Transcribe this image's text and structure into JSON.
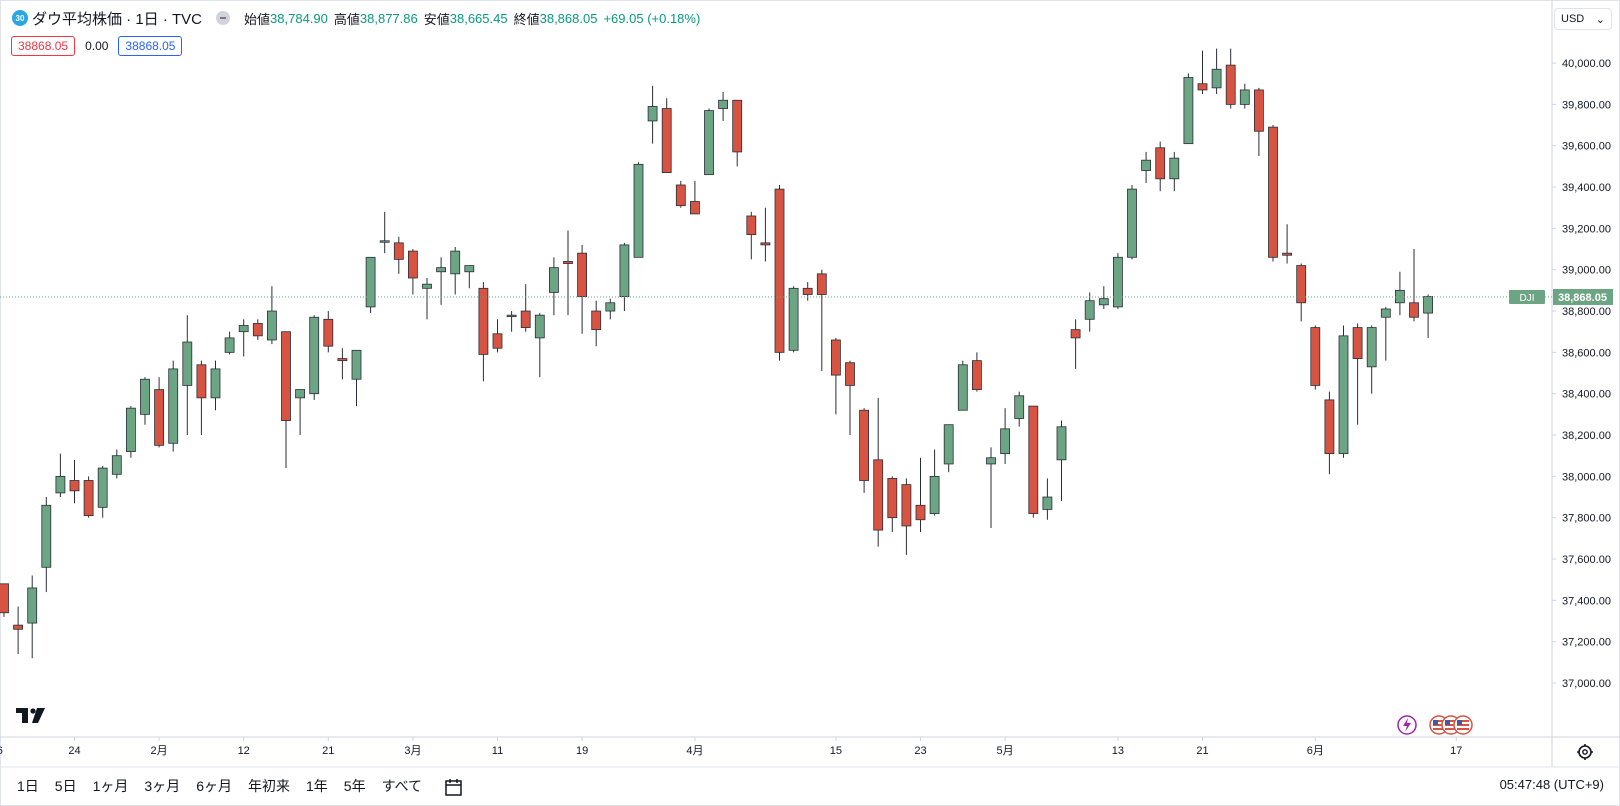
{
  "header": {
    "symbol_badge": "30",
    "title": "ダウ平均株価 · 1日 · TVC",
    "ohlc": [
      {
        "label": "始値",
        "value": "38,784.90"
      },
      {
        "label": "高値",
        "value": "38,877.86"
      },
      {
        "label": "安値",
        "value": "38,665.45"
      },
      {
        "label": "終値",
        "value": "38,868.05"
      }
    ],
    "change": "+69.05 (+0.18%)",
    "bid": "38868.05",
    "spread": "0.00",
    "ask": "38868.05"
  },
  "currency": "USD",
  "price_label": {
    "symbol": "DJI",
    "value": "38,868.05"
  },
  "periods": [
    "1日",
    "5日",
    "1ヶ月",
    "3ヶ月",
    "6ヶ月",
    "年初来",
    "1年",
    "5年",
    "すべて"
  ],
  "clock": "05:47:48 (UTC+9)",
  "colors": {
    "up": "#6ba583",
    "down": "#d75442",
    "grid_text": "#131722",
    "label_bg": "#6ba583"
  },
  "chart_data": {
    "type": "candlestick",
    "ylim": [
      36850,
      40160
    ],
    "y_ticks": [
      "37,000.00",
      "37,200.00",
      "37,400.00",
      "37,600.00",
      "37,800.00",
      "38,000.00",
      "38,200.00",
      "38,400.00",
      "38,600.00",
      "38,800.00",
      "39,000.00",
      "39,200.00",
      "39,400.00",
      "39,600.00",
      "39,800.00",
      "40,000.00"
    ],
    "y_tick_values": [
      37000,
      37200,
      37400,
      37600,
      37800,
      38000,
      38200,
      38400,
      38600,
      38800,
      39000,
      39200,
      39400,
      39600,
      39800,
      40000
    ],
    "x_ticks": [
      {
        "label": "6",
        "index": -0.3
      },
      {
        "label": "24",
        "index": 5
      },
      {
        "label": "2月",
        "index": 11
      },
      {
        "label": "12",
        "index": 17
      },
      {
        "label": "21",
        "index": 23
      },
      {
        "label": "3月",
        "index": 29
      },
      {
        "label": "11",
        "index": 35
      },
      {
        "label": "19",
        "index": 41
      },
      {
        "label": "4月",
        "index": 49
      },
      {
        "label": "15",
        "index": 59
      },
      {
        "label": "23",
        "index": 65
      },
      {
        "label": "5月",
        "index": 71
      },
      {
        "label": "13",
        "index": 79
      },
      {
        "label": "21",
        "index": 85
      },
      {
        "label": "6月",
        "index": 93
      },
      {
        "label": "17",
        "index": 103
      }
    ],
    "last_price": 38868.05,
    "candles": [
      {
        "o": 37480,
        "h": 37480,
        "l": 37320,
        "c": 37340
      },
      {
        "o": 37280,
        "h": 37370,
        "l": 37140,
        "c": 37260
      },
      {
        "o": 37290,
        "h": 37520,
        "l": 37120,
        "c": 37460
      },
      {
        "o": 37560,
        "h": 37900,
        "l": 37440,
        "c": 37860
      },
      {
        "o": 37920,
        "h": 38110,
        "l": 37900,
        "c": 38000
      },
      {
        "o": 37980,
        "h": 38080,
        "l": 37870,
        "c": 37930
      },
      {
        "o": 37980,
        "h": 38000,
        "l": 37800,
        "c": 37810
      },
      {
        "o": 37850,
        "h": 38050,
        "l": 37800,
        "c": 38040
      },
      {
        "o": 38010,
        "h": 38130,
        "l": 37990,
        "c": 38100
      },
      {
        "o": 38120,
        "h": 38340,
        "l": 38090,
        "c": 38330
      },
      {
        "o": 38300,
        "h": 38480,
        "l": 38250,
        "c": 38470
      },
      {
        "o": 38420,
        "h": 38480,
        "l": 38140,
        "c": 38150
      },
      {
        "o": 38160,
        "h": 38560,
        "l": 38120,
        "c": 38520
      },
      {
        "o": 38440,
        "h": 38780,
        "l": 38200,
        "c": 38650
      },
      {
        "o": 38540,
        "h": 38560,
        "l": 38200,
        "c": 38380
      },
      {
        "o": 38380,
        "h": 38560,
        "l": 38320,
        "c": 38520
      },
      {
        "o": 38600,
        "h": 38700,
        "l": 38590,
        "c": 38670
      },
      {
        "o": 38700,
        "h": 38760,
        "l": 38580,
        "c": 38730
      },
      {
        "o": 38740,
        "h": 38760,
        "l": 38660,
        "c": 38680
      },
      {
        "o": 38660,
        "h": 38920,
        "l": 38640,
        "c": 38800
      },
      {
        "o": 38700,
        "h": 38700,
        "l": 38040,
        "c": 38270
      },
      {
        "o": 38380,
        "h": 38420,
        "l": 38200,
        "c": 38420
      },
      {
        "o": 38400,
        "h": 38780,
        "l": 38370,
        "c": 38770
      },
      {
        "o": 38760,
        "h": 38800,
        "l": 38600,
        "c": 38630
      },
      {
        "o": 38570,
        "h": 38620,
        "l": 38470,
        "c": 38560
      },
      {
        "o": 38470,
        "h": 38610,
        "l": 38340,
        "c": 38610
      },
      {
        "o": 38820,
        "h": 39040,
        "l": 38790,
        "c": 39060
      },
      {
        "o": 39140,
        "h": 39280,
        "l": 39080,
        "c": 39140
      },
      {
        "o": 39130,
        "h": 39160,
        "l": 38980,
        "c": 39050
      },
      {
        "o": 39090,
        "h": 39100,
        "l": 38880,
        "c": 38960
      },
      {
        "o": 38910,
        "h": 38960,
        "l": 38760,
        "c": 38930
      },
      {
        "o": 38990,
        "h": 39060,
        "l": 38830,
        "c": 39010
      },
      {
        "o": 38980,
        "h": 39110,
        "l": 38880,
        "c": 39090
      },
      {
        "o": 38990,
        "h": 39020,
        "l": 38910,
        "c": 39020
      },
      {
        "o": 38910,
        "h": 38940,
        "l": 38460,
        "c": 38590
      },
      {
        "o": 38690,
        "h": 38760,
        "l": 38600,
        "c": 38620
      },
      {
        "o": 38780,
        "h": 38800,
        "l": 38700,
        "c": 38780
      },
      {
        "o": 38800,
        "h": 38930,
        "l": 38700,
        "c": 38720
      },
      {
        "o": 38670,
        "h": 38790,
        "l": 38480,
        "c": 38780
      },
      {
        "o": 38890,
        "h": 39060,
        "l": 38780,
        "c": 39010
      },
      {
        "o": 39040,
        "h": 39190,
        "l": 38780,
        "c": 39030
      },
      {
        "o": 39080,
        "h": 39120,
        "l": 38690,
        "c": 38870
      },
      {
        "o": 38800,
        "h": 38850,
        "l": 38630,
        "c": 38710
      },
      {
        "o": 38800,
        "h": 38860,
        "l": 38760,
        "c": 38840
      },
      {
        "o": 38870,
        "h": 39130,
        "l": 38800,
        "c": 39120
      },
      {
        "o": 39060,
        "h": 39520,
        "l": 39060,
        "c": 39510
      },
      {
        "o": 39720,
        "h": 39890,
        "l": 39610,
        "c": 39790
      },
      {
        "o": 39780,
        "h": 39830,
        "l": 39500,
        "c": 39470
      },
      {
        "o": 39410,
        "h": 39430,
        "l": 39300,
        "c": 39310
      },
      {
        "o": 39330,
        "h": 39430,
        "l": 39270,
        "c": 39270
      },
      {
        "o": 39460,
        "h": 39780,
        "l": 39460,
        "c": 39770
      },
      {
        "o": 39780,
        "h": 39860,
        "l": 39720,
        "c": 39820
      },
      {
        "o": 39820,
        "h": 39820,
        "l": 39500,
        "c": 39570
      },
      {
        "o": 39260,
        "h": 39280,
        "l": 39050,
        "c": 39170
      },
      {
        "o": 39130,
        "h": 39300,
        "l": 39040,
        "c": 39120
      },
      {
        "o": 39390,
        "h": 39410,
        "l": 38560,
        "c": 38600
      },
      {
        "o": 38610,
        "h": 38920,
        "l": 38600,
        "c": 38910
      },
      {
        "o": 38910,
        "h": 38940,
        "l": 38850,
        "c": 38880
      },
      {
        "o": 38980,
        "h": 39000,
        "l": 38510,
        "c": 38880
      },
      {
        "o": 38660,
        "h": 38670,
        "l": 38300,
        "c": 38490
      },
      {
        "o": 38550,
        "h": 38560,
        "l": 38200,
        "c": 38440
      },
      {
        "o": 38320,
        "h": 38330,
        "l": 37920,
        "c": 37980
      },
      {
        "o": 38080,
        "h": 38380,
        "l": 37660,
        "c": 37740
      },
      {
        "o": 37990,
        "h": 38000,
        "l": 37730,
        "c": 37800
      },
      {
        "o": 37960,
        "h": 37990,
        "l": 37620,
        "c": 37760
      },
      {
        "o": 37860,
        "h": 38090,
        "l": 37730,
        "c": 37790
      },
      {
        "o": 37820,
        "h": 38130,
        "l": 37810,
        "c": 38000
      },
      {
        "o": 38060,
        "h": 38230,
        "l": 38020,
        "c": 38250
      },
      {
        "o": 38320,
        "h": 38560,
        "l": 38320,
        "c": 38540
      },
      {
        "o": 38560,
        "h": 38600,
        "l": 38410,
        "c": 38420
      },
      {
        "o": 38060,
        "h": 38140,
        "l": 37750,
        "c": 38090
      },
      {
        "o": 38110,
        "h": 38330,
        "l": 38060,
        "c": 38230
      },
      {
        "o": 38280,
        "h": 38410,
        "l": 38240,
        "c": 38390
      },
      {
        "o": 38340,
        "h": 38340,
        "l": 37800,
        "c": 37820
      },
      {
        "o": 37840,
        "h": 37990,
        "l": 37790,
        "c": 37900
      },
      {
        "o": 38080,
        "h": 38270,
        "l": 37880,
        "c": 38240
      },
      {
        "o": 38710,
        "h": 38760,
        "l": 38520,
        "c": 38670
      },
      {
        "o": 38760,
        "h": 38890,
        "l": 38700,
        "c": 38850
      },
      {
        "o": 38830,
        "h": 38920,
        "l": 38810,
        "c": 38860
      },
      {
        "o": 38820,
        "h": 39080,
        "l": 38810,
        "c": 39060
      },
      {
        "o": 39060,
        "h": 39410,
        "l": 39050,
        "c": 39390
      },
      {
        "o": 39480,
        "h": 39570,
        "l": 39420,
        "c": 39530
      },
      {
        "o": 39590,
        "h": 39620,
        "l": 39380,
        "c": 39440
      },
      {
        "o": 39440,
        "h": 39570,
        "l": 39380,
        "c": 39540
      },
      {
        "o": 39610,
        "h": 39950,
        "l": 39610,
        "c": 39930
      },
      {
        "o": 39900,
        "h": 40060,
        "l": 39850,
        "c": 39870
      },
      {
        "o": 39880,
        "h": 40070,
        "l": 39850,
        "c": 39970
      },
      {
        "o": 39990,
        "h": 40070,
        "l": 39780,
        "c": 39800
      },
      {
        "o": 39800,
        "h": 39900,
        "l": 39780,
        "c": 39870
      },
      {
        "o": 39870,
        "h": 39880,
        "l": 39550,
        "c": 39670
      },
      {
        "o": 39690,
        "h": 39700,
        "l": 39040,
        "c": 39060
      },
      {
        "o": 39080,
        "h": 39220,
        "l": 39030,
        "c": 39070
      },
      {
        "o": 39020,
        "h": 39030,
        "l": 38750,
        "c": 38840
      },
      {
        "o": 38720,
        "h": 38730,
        "l": 38420,
        "c": 38440
      },
      {
        "o": 38370,
        "h": 38410,
        "l": 38010,
        "c": 38110
      },
      {
        "o": 38110,
        "h": 38730,
        "l": 38090,
        "c": 38680
      },
      {
        "o": 38720,
        "h": 38740,
        "l": 38250,
        "c": 38570
      },
      {
        "o": 38530,
        "h": 38730,
        "l": 38400,
        "c": 38720
      },
      {
        "o": 38770,
        "h": 38820,
        "l": 38560,
        "c": 38810
      },
      {
        "o": 38840,
        "h": 38990,
        "l": 38780,
        "c": 38900
      },
      {
        "o": 38840,
        "h": 39100,
        "l": 38750,
        "c": 38770
      },
      {
        "o": 38790,
        "h": 38880,
        "l": 38670,
        "c": 38870
      }
    ]
  }
}
